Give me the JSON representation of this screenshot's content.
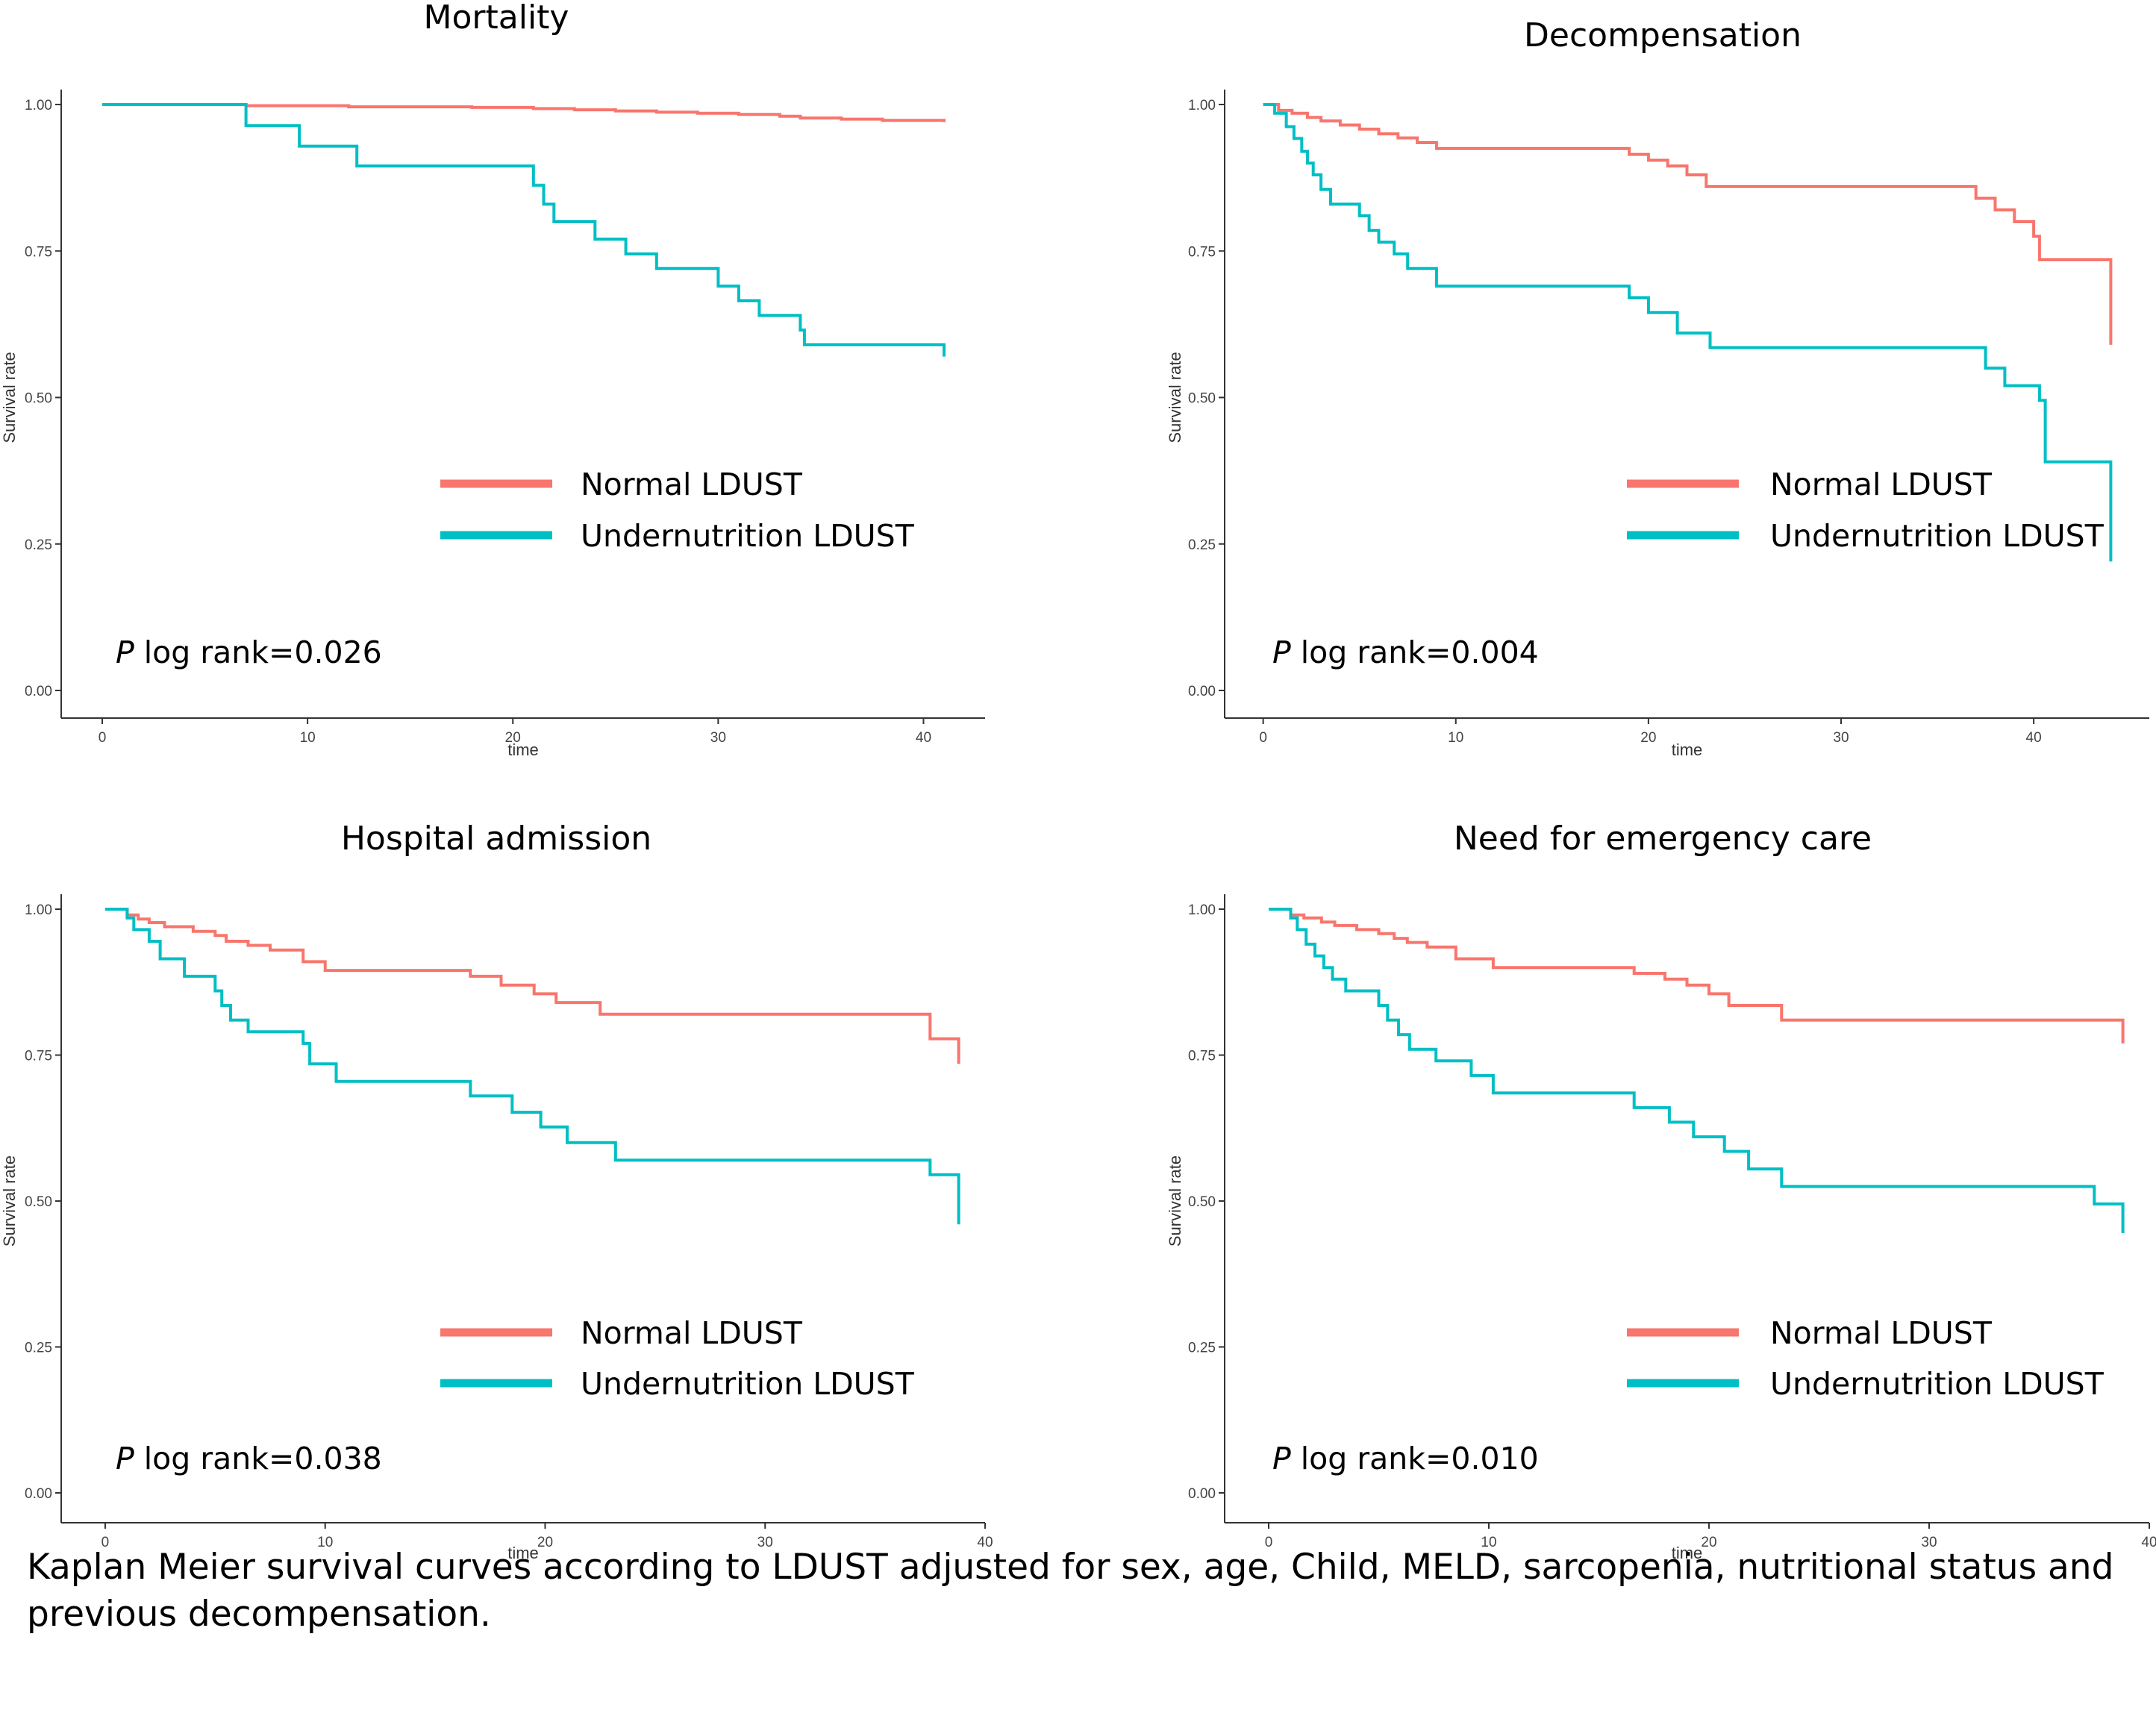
{
  "chart_data": [
    {
      "type": "line",
      "title": "Mortality",
      "xlabel": "time",
      "ylabel": "Survival rate",
      "xlim": [
        -2,
        43
      ],
      "ylim": [
        0,
        1
      ],
      "xticks": [
        0,
        10,
        20,
        30,
        40
      ],
      "yticks": [
        "0.00",
        "0.25",
        "0.50",
        "0.75",
        "1.00"
      ],
      "legend": [
        "Normal LDUST",
        "Undernutrition LDUST"
      ],
      "p_label": "P",
      "p_value": " log rank=0.026",
      "series": [
        {
          "name": "Normal LDUST",
          "color": "#F8766D",
          "x": [
            0,
            7,
            12,
            18,
            21,
            23,
            25,
            27,
            29,
            31,
            33,
            34,
            36,
            38,
            41
          ],
          "y": [
            1.0,
            0.998,
            0.996,
            0.995,
            0.993,
            0.991,
            0.989,
            0.987,
            0.985,
            0.983,
            0.98,
            0.977,
            0.975,
            0.973,
            0.97
          ]
        },
        {
          "name": "Undernutrition LDUST",
          "color": "#00BFC4",
          "x": [
            0,
            7,
            9.6,
            12.4,
            21,
            21.5,
            22,
            24,
            25.5,
            27,
            30,
            31,
            32,
            34,
            34.2,
            41,
            41
          ],
          "y": [
            1.0,
            0.964,
            0.929,
            0.895,
            0.862,
            0.83,
            0.8,
            0.77,
            0.745,
            0.72,
            0.69,
            0.665,
            0.64,
            0.615,
            0.59,
            0.59,
            0.57
          ]
        }
      ]
    },
    {
      "type": "line",
      "title": "Decompensation",
      "xlabel": "time",
      "ylabel": "Survival rate",
      "xlim": [
        -2,
        46
      ],
      "ylim": [
        0,
        1
      ],
      "xticks": [
        0,
        10,
        20,
        30,
        40
      ],
      "yticks": [
        "0.00",
        "0.25",
        "0.50",
        "0.75",
        "1.00"
      ],
      "legend": [
        "Normal LDUST",
        "Undernutrition LDUST"
      ],
      "p_label": "P",
      "p_value": " log rank=0.004",
      "series": [
        {
          "name": "Normal LDUST",
          "color": "#F8766D",
          "x": [
            0,
            0.8,
            1.5,
            2.3,
            3,
            4,
            5,
            6,
            7,
            8,
            9,
            19,
            20,
            21,
            22,
            23,
            37,
            38,
            39,
            40,
            40.3,
            44,
            44
          ],
          "y": [
            1.0,
            0.99,
            0.985,
            0.978,
            0.972,
            0.965,
            0.958,
            0.95,
            0.943,
            0.935,
            0.925,
            0.915,
            0.905,
            0.895,
            0.88,
            0.86,
            0.84,
            0.82,
            0.8,
            0.775,
            0.735,
            0.735,
            0.59
          ]
        },
        {
          "name": "Undernutrition LDUST",
          "color": "#00BFC4",
          "x": [
            0,
            0.6,
            1.2,
            1.6,
            2,
            2.3,
            2.6,
            3,
            3.5,
            5,
            5.5,
            6,
            6.8,
            7.5,
            9,
            19,
            20,
            21.5,
            23.2,
            37.5,
            38.5,
            40.3,
            40.6,
            44,
            44
          ],
          "y": [
            1.0,
            0.985,
            0.962,
            0.942,
            0.92,
            0.9,
            0.88,
            0.855,
            0.83,
            0.81,
            0.785,
            0.765,
            0.745,
            0.72,
            0.69,
            0.67,
            0.645,
            0.61,
            0.585,
            0.55,
            0.52,
            0.495,
            0.39,
            0.39,
            0.22
          ]
        }
      ]
    },
    {
      "type": "line",
      "title": "Hospital admission",
      "xlabel": "time",
      "ylabel": "Survival rate",
      "xlim": [
        -2,
        40
      ],
      "ylim": [
        0,
        1
      ],
      "xticks": [
        0,
        10,
        20,
        30,
        40
      ],
      "yticks": [
        "0.00",
        "0.25",
        "0.50",
        "0.75",
        "1.00"
      ],
      "legend": [
        "Normal LDUST",
        "Undernutrition LDUST"
      ],
      "p_label": "P",
      "p_value": " log rank=0.038",
      "series": [
        {
          "name": "Normal LDUST",
          "color": "#F8766D",
          "x": [
            0,
            1,
            1.5,
            2,
            2.7,
            4,
            5,
            5.5,
            6.5,
            7.5,
            9,
            10,
            16.6,
            18,
            19.5,
            20.5,
            22.5,
            37.5,
            38.8,
            38.8
          ],
          "y": [
            1.0,
            0.99,
            0.983,
            0.977,
            0.97,
            0.962,
            0.955,
            0.945,
            0.938,
            0.93,
            0.91,
            0.895,
            0.885,
            0.87,
            0.855,
            0.84,
            0.82,
            0.778,
            0.757,
            0.735
          ]
        },
        {
          "name": "Undernutrition LDUST",
          "color": "#00BFC4",
          "x": [
            0,
            1,
            1.3,
            2,
            2.5,
            3.6,
            5,
            5.3,
            5.7,
            6.5,
            9,
            9.3,
            10.5,
            16.6,
            18.5,
            19.8,
            21,
            23.2,
            37.5,
            38.8,
            38.8
          ],
          "y": [
            1.0,
            0.985,
            0.965,
            0.945,
            0.915,
            0.885,
            0.86,
            0.835,
            0.81,
            0.79,
            0.77,
            0.735,
            0.705,
            0.68,
            0.652,
            0.627,
            0.6,
            0.57,
            0.545,
            0.515,
            0.46
          ]
        }
      ]
    },
    {
      "type": "line",
      "title": "Need for emergency care",
      "xlabel": "time",
      "ylabel": "Survival rate",
      "xlim": [
        -2,
        40
      ],
      "ylim": [
        0,
        1
      ],
      "xticks": [
        0,
        10,
        20,
        30,
        40
      ],
      "yticks": [
        "0.00",
        "0.25",
        "0.50",
        "0.75",
        "1.00"
      ],
      "legend": [
        "Normal LDUST",
        "Undernutrition LDUST"
      ],
      "p_label": "P",
      "p_value": " log rank=0.010",
      "series": [
        {
          "name": "Normal LDUST",
          "color": "#F8766D",
          "x": [
            0,
            1,
            1.6,
            2.4,
            3,
            4,
            5,
            5.7,
            6.3,
            7.2,
            8.5,
            10.2,
            16.6,
            18,
            19,
            20,
            20.9,
            23.3,
            37.5,
            38.8,
            38.8
          ],
          "y": [
            1.0,
            0.99,
            0.985,
            0.978,
            0.972,
            0.965,
            0.958,
            0.95,
            0.943,
            0.935,
            0.915,
            0.9,
            0.89,
            0.88,
            0.87,
            0.855,
            0.835,
            0.81,
            0.81,
            0.792,
            0.77
          ]
        },
        {
          "name": "Undernutrition LDUST",
          "color": "#00BFC4",
          "x": [
            0,
            1,
            1.3,
            1.7,
            2.1,
            2.5,
            2.9,
            3.5,
            5,
            5.4,
            5.9,
            6.4,
            7.6,
            9.2,
            10.2,
            16.6,
            18.2,
            19.3,
            20.7,
            21.8,
            23.3,
            37.5,
            38.8,
            38.8
          ],
          "y": [
            1.0,
            0.985,
            0.965,
            0.94,
            0.92,
            0.9,
            0.88,
            0.86,
            0.835,
            0.81,
            0.785,
            0.76,
            0.74,
            0.715,
            0.685,
            0.66,
            0.635,
            0.61,
            0.585,
            0.555,
            0.525,
            0.495,
            0.47,
            0.445
          ]
        }
      ]
    }
  ],
  "caption": "Kaplan Meier survival curves according to LDUST adjusted for sex, age, Child, MELD, sarcopenia, nutritional status and previous decompensation."
}
